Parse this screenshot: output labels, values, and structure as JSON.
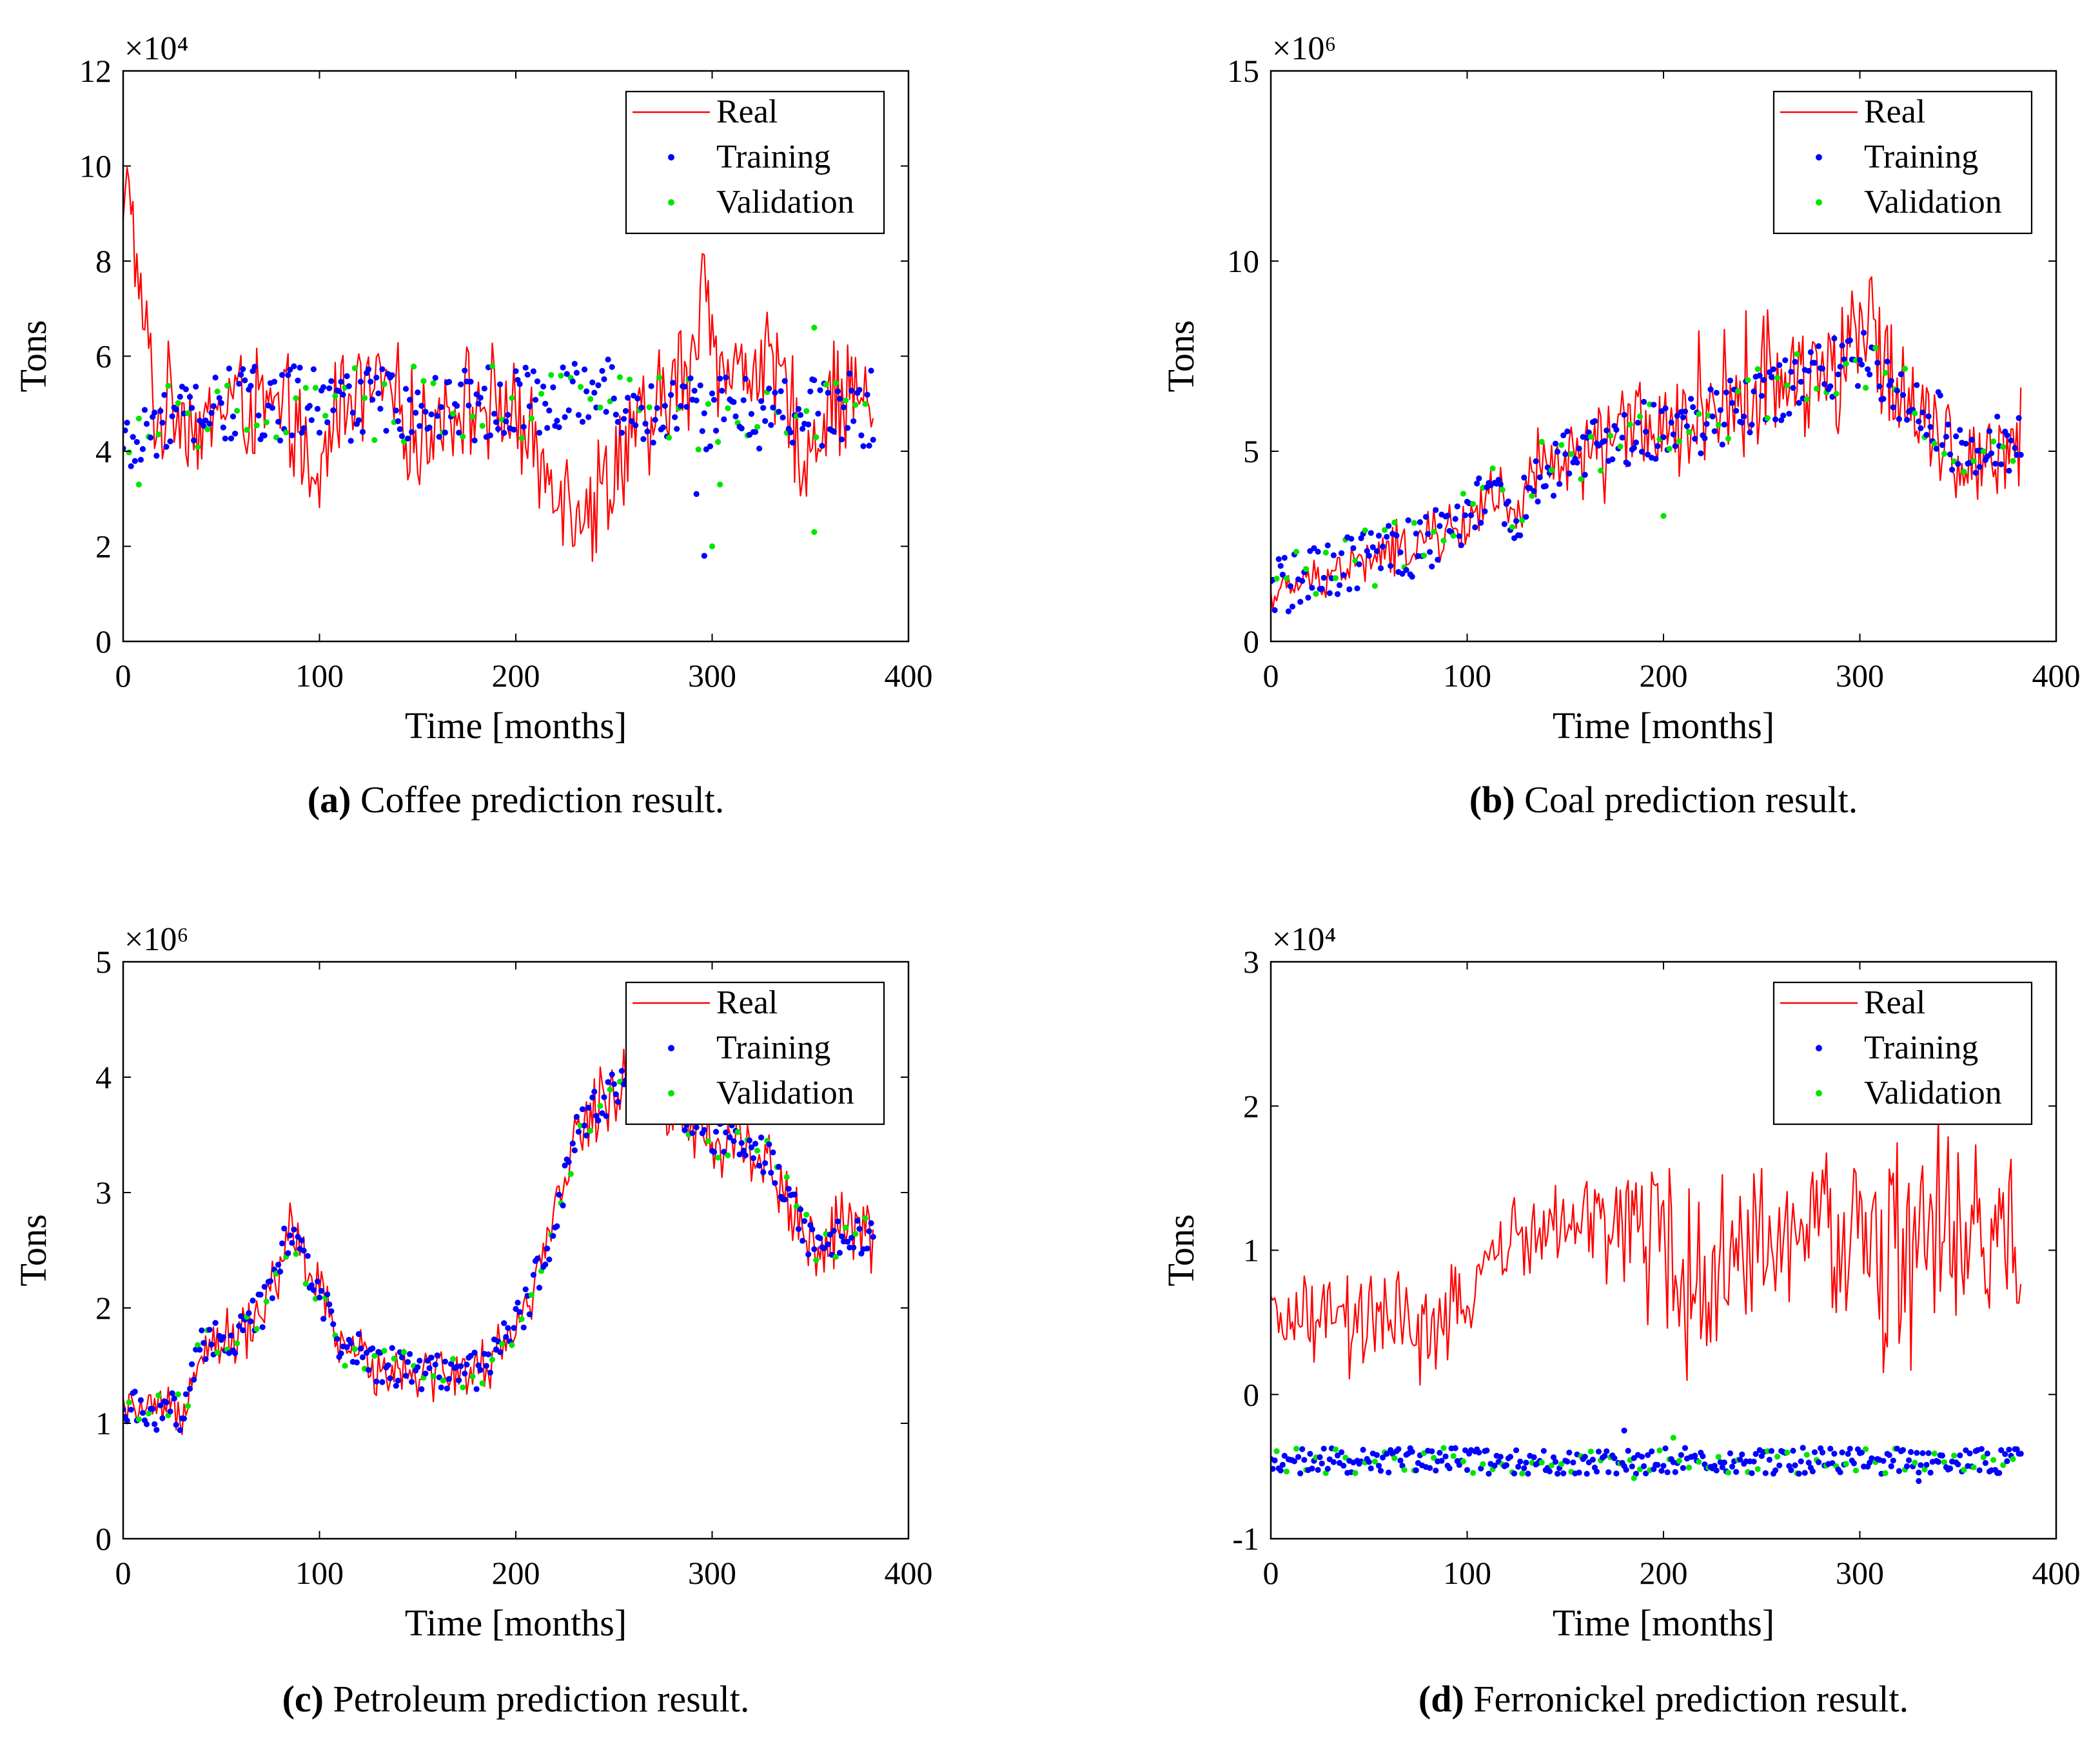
{
  "figure": {
    "panels": [
      {
        "caption_tag": "(a)",
        "caption_text": " Coffee prediction result."
      },
      {
        "caption_tag": "(b)",
        "caption_text": " Coal prediction result."
      },
      {
        "caption_tag": "(c)",
        "caption_text": " Petroleum prediction result."
      },
      {
        "caption_tag": "(d)",
        "caption_text": " Ferronickel prediction result."
      }
    ]
  },
  "colors": {
    "real": "#ff0000",
    "training": "#0000ff",
    "validation": "#00e600"
  },
  "chart_data": [
    {
      "type": "line",
      "subtype": "time-series with scatter overlays",
      "xlabel": "Time [months]",
      "ylabel": "Tons",
      "multiplier": "×10⁴",
      "xlim": [
        0,
        400
      ],
      "ylim": [
        0,
        12
      ],
      "xticks": [
        0,
        100,
        200,
        300,
        400
      ],
      "yticks": [
        0,
        2,
        4,
        6,
        8,
        10,
        12
      ],
      "legend": [
        "Real",
        "Training",
        "Validation"
      ],
      "legend_position": "top-right",
      "grid": false,
      "n_months": 383,
      "real_anchors": [
        [
          0,
          8.6
        ],
        [
          3,
          10
        ],
        [
          8,
          7
        ],
        [
          12,
          6.5
        ],
        [
          17,
          4.5
        ],
        [
          25,
          5.2
        ],
        [
          40,
          4.4
        ],
        [
          55,
          5.2
        ],
        [
          70,
          4.9
        ],
        [
          90,
          4.5
        ],
        [
          96,
          2.7
        ],
        [
          110,
          5.2
        ],
        [
          130,
          5.4
        ],
        [
          150,
          4.3
        ],
        [
          170,
          5.0
        ],
        [
          190,
          5.0
        ],
        [
          200,
          4.8
        ],
        [
          210,
          3.8
        ],
        [
          225,
          3.3
        ],
        [
          235,
          2.9
        ],
        [
          245,
          3.2
        ],
        [
          258,
          4.4
        ],
        [
          270,
          4.4
        ],
        [
          280,
          5.5
        ],
        [
          290,
          5.6
        ],
        [
          296,
          8.0
        ],
        [
          305,
          5.5
        ],
        [
          320,
          5.9
        ],
        [
          335,
          5.5
        ],
        [
          348,
          3.8
        ],
        [
          360,
          5.2
        ],
        [
          372,
          5.2
        ],
        [
          382,
          5.0
        ]
      ],
      "real_noise": [
        0.9,
        0.9,
        1.0,
        1.0,
        1.0,
        1.0,
        1.0,
        0.9,
        1.1,
        1.1,
        1.1,
        1.0,
        1.0,
        1.0
      ],
      "training_anchors": [
        [
          0,
          4.0
        ],
        [
          20,
          4.6
        ],
        [
          60,
          5.0
        ],
        [
          120,
          5.0
        ],
        [
          200,
          5.0
        ],
        [
          240,
          5.3
        ],
        [
          280,
          4.8
        ],
        [
          320,
          4.8
        ],
        [
          382,
          4.9
        ]
      ],
      "training_spread": 0.8,
      "training_outliers": [
        [
          296,
          1.8
        ],
        [
          292,
          3.1
        ]
      ],
      "validation_outliers": [
        [
          300,
          2.0
        ],
        [
          304,
          3.3
        ],
        [
          352,
          2.3
        ],
        [
          352,
          6.6
        ],
        [
          8,
          3.3
        ]
      ]
    },
    {
      "type": "line",
      "subtype": "time-series with scatter overlays",
      "xlabel": "Time [months]",
      "ylabel": "Tons",
      "multiplier": "×10⁶",
      "xlim": [
        0,
        400
      ],
      "ylim": [
        0,
        15
      ],
      "xticks": [
        0,
        100,
        200,
        300,
        400
      ],
      "yticks": [
        0,
        5,
        10,
        15
      ],
      "legend": [
        "Real",
        "Training",
        "Validation"
      ],
      "legend_position": "top-right",
      "grid": false,
      "n_months": 383,
      "real_anchors": [
        [
          0,
          1.2
        ],
        [
          20,
          1.6
        ],
        [
          40,
          2.0
        ],
        [
          60,
          2.3
        ],
        [
          80,
          2.7
        ],
        [
          100,
          3.0
        ],
        [
          110,
          4.0
        ],
        [
          125,
          3.0
        ],
        [
          135,
          4.5
        ],
        [
          150,
          4.7
        ],
        [
          170,
          5.2
        ],
        [
          190,
          6.0
        ],
        [
          200,
          4.8
        ],
        [
          215,
          6.2
        ],
        [
          240,
          6.5
        ],
        [
          260,
          7.0
        ],
        [
          275,
          7.3
        ],
        [
          290,
          7.0
        ],
        [
          300,
          8.0
        ],
        [
          310,
          7.8
        ],
        [
          325,
          6.5
        ],
        [
          340,
          5.8
        ],
        [
          350,
          4.5
        ],
        [
          365,
          5.0
        ],
        [
          382,
          5.3
        ]
      ],
      "real_noise": [
        0.4,
        0.5,
        0.6,
        0.7,
        0.8,
        1.0,
        1.2,
        1.4,
        1.5,
        1.6,
        1.7,
        1.5,
        1.2,
        1.0
      ],
      "training_anchors": [
        [
          0,
          1.5
        ],
        [
          20,
          1.7
        ],
        [
          50,
          2.2
        ],
        [
          80,
          2.6
        ],
        [
          100,
          3.2
        ],
        [
          110,
          4.2
        ],
        [
          125,
          3.0
        ],
        [
          135,
          4.4
        ],
        [
          160,
          5.0
        ],
        [
          190,
          5.6
        ],
        [
          210,
          5.5
        ],
        [
          240,
          6.2
        ],
        [
          270,
          6.8
        ],
        [
          300,
          7.5
        ],
        [
          320,
          6.6
        ],
        [
          340,
          5.8
        ],
        [
          350,
          5.0
        ],
        [
          382,
          5.2
        ]
      ],
      "training_spread": 0.8,
      "training_outliers": [],
      "validation_outliers": [
        [
          200,
          3.3
        ]
      ]
    },
    {
      "type": "line",
      "subtype": "time-series with scatter overlays",
      "xlabel": "Time [months]",
      "ylabel": "Tons",
      "multiplier": "×10⁶",
      "xlim": [
        0,
        400
      ],
      "ylim": [
        0,
        5
      ],
      "xticks": [
        0,
        100,
        200,
        300,
        400
      ],
      "yticks": [
        0,
        1,
        2,
        3,
        4,
        5
      ],
      "legend": [
        "Real",
        "Training",
        "Validation"
      ],
      "legend_position": "top-right",
      "grid": false,
      "n_months": 383,
      "real_anchors": [
        [
          0,
          1.1
        ],
        [
          30,
          1.1
        ],
        [
          40,
          1.7
        ],
        [
          60,
          1.75
        ],
        [
          75,
          2.1
        ],
        [
          85,
          2.7
        ],
        [
          95,
          2.3
        ],
        [
          110,
          1.7
        ],
        [
          130,
          1.5
        ],
        [
          160,
          1.45
        ],
        [
          180,
          1.45
        ],
        [
          190,
          1.6
        ],
        [
          205,
          2.0
        ],
        [
          220,
          2.7
        ],
        [
          230,
          3.5
        ],
        [
          245,
          3.8
        ],
        [
          255,
          4.0
        ],
        [
          265,
          3.9
        ],
        [
          280,
          3.7
        ],
        [
          300,
          3.5
        ],
        [
          330,
          3.3
        ],
        [
          345,
          2.7
        ],
        [
          355,
          2.5
        ],
        [
          370,
          2.7
        ],
        [
          382,
          2.6
        ]
      ],
      "real_noise": [
        0.15,
        0.2,
        0.25,
        0.25,
        0.2,
        0.2,
        0.2,
        0.2,
        0.25,
        0.3,
        0.3,
        0.3,
        0.3,
        0.3
      ],
      "training_anchors": [
        [
          0,
          1.1
        ],
        [
          30,
          1.1
        ],
        [
          40,
          1.7
        ],
        [
          60,
          1.75
        ],
        [
          75,
          2.1
        ],
        [
          85,
          2.7
        ],
        [
          95,
          2.3
        ],
        [
          110,
          1.7
        ],
        [
          130,
          1.5
        ],
        [
          160,
          1.45
        ],
        [
          180,
          1.45
        ],
        [
          190,
          1.6
        ],
        [
          205,
          2.0
        ],
        [
          220,
          2.7
        ],
        [
          230,
          3.5
        ],
        [
          245,
          3.8
        ],
        [
          255,
          4.0
        ],
        [
          265,
          3.9
        ],
        [
          280,
          3.7
        ],
        [
          300,
          3.5
        ],
        [
          330,
          3.3
        ],
        [
          345,
          2.7
        ],
        [
          355,
          2.5
        ],
        [
          370,
          2.7
        ],
        [
          382,
          2.6
        ]
      ],
      "training_spread": 0.18,
      "training_outliers": [],
      "validation_outliers": []
    },
    {
      "type": "line",
      "subtype": "time-series with scatter overlays",
      "xlabel": "Time [months]",
      "ylabel": "Tons",
      "multiplier": "×10⁴",
      "xlim": [
        0,
        400
      ],
      "ylim": [
        -1,
        3
      ],
      "xticks": [
        0,
        100,
        200,
        300,
        400
      ],
      "yticks": [
        -1,
        0,
        1,
        2,
        3
      ],
      "legend": [
        "Real",
        "Training",
        "Validation"
      ],
      "legend_position": "top-right",
      "grid": false,
      "n_months": 383,
      "real_anchors": [
        [
          0,
          0.5
        ],
        [
          40,
          0.5
        ],
        [
          70,
          0.45
        ],
        [
          100,
          0.5
        ],
        [
          105,
          0.9
        ],
        [
          130,
          1.1
        ],
        [
          160,
          1.15
        ],
        [
          180,
          1.2
        ],
        [
          185,
          1.3
        ],
        [
          200,
          1.0
        ],
        [
          215,
          0.7
        ],
        [
          240,
          1.0
        ],
        [
          270,
          1.1
        ],
        [
          290,
          1.1
        ],
        [
          300,
          1.1
        ],
        [
          320,
          1.0
        ],
        [
          340,
          1.1
        ],
        [
          360,
          1.1
        ],
        [
          382,
          1.05
        ]
      ],
      "real_noise": [
        0.25,
        0.3,
        0.3,
        0.3,
        0.25,
        0.3,
        0.4,
        0.6,
        0.5,
        0.5,
        0.5,
        0.7,
        0.6,
        0.5
      ],
      "training_anchors": [
        [
          0,
          -0.46
        ],
        [
          200,
          -0.46
        ],
        [
          382,
          -0.46
        ]
      ],
      "training_spread": 0.09,
      "training_outliers": [
        [
          180,
          -0.25
        ],
        [
          330,
          -0.6
        ]
      ],
      "validation_outliers": [
        [
          205,
          -0.3
        ],
        [
          185,
          -0.58
        ]
      ]
    }
  ]
}
